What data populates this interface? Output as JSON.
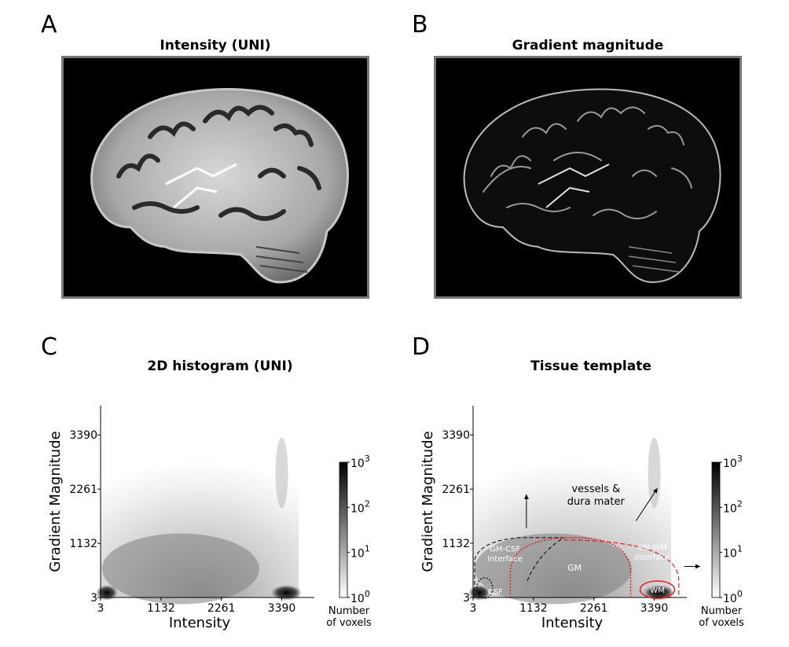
{
  "panels": {
    "A": {
      "letter": "A",
      "title": "Intensity (UNI)"
    },
    "B": {
      "letter": "B",
      "title": "Gradient magnitude"
    },
    "C": {
      "letter": "C",
      "title": "2D histogram (UNI)"
    },
    "D": {
      "letter": "D",
      "title": "Tissue template"
    }
  },
  "chart_data": [
    {
      "type": "heatmap",
      "title": "2D histogram (UNI)",
      "xlabel": "Intensity",
      "ylabel": "Gradient Magnitude",
      "xticks": [
        "3",
        "1132",
        "2261",
        "3390"
      ],
      "yticks": [
        "3",
        "1132",
        "2261",
        "3390"
      ],
      "xlim": [
        3,
        4000
      ],
      "ylim": [
        3,
        4000
      ],
      "colorbar": {
        "scale": "log",
        "ticks": [
          "10^0",
          "10^1",
          "10^2",
          "10^3"
        ],
        "label": "Number of voxels",
        "label_lines": [
          "Number",
          "of voxels"
        ]
      },
      "hotspots": [
        {
          "intensity": 3,
          "gradient": 3,
          "level": "high"
        },
        {
          "intensity": 3390,
          "gradient": 3,
          "level": "high"
        },
        {
          "intensity": 1500,
          "gradient": 600,
          "level": "medium"
        }
      ]
    },
    {
      "type": "heatmap",
      "title": "Tissue template",
      "xlabel": "Intensity",
      "ylabel": "Gradient Magnitude",
      "xticks": [
        "3",
        "1132",
        "2261",
        "3390"
      ],
      "yticks": [
        "3",
        "1132",
        "2261",
        "3390"
      ],
      "xlim": [
        3,
        4000
      ],
      "ylim": [
        3,
        4000
      ],
      "colorbar": {
        "scale": "log",
        "ticks": [
          "10^0",
          "10^1",
          "10^2",
          "10^3"
        ],
        "label": "Number of voxels",
        "label_lines": [
          "Number",
          "of voxels"
        ]
      },
      "annotations": [
        {
          "text": "CSF",
          "color": "#ffffff"
        },
        {
          "text": "GM",
          "color": "#ffffff"
        },
        {
          "text": "WM",
          "color": "#ffffff"
        },
        {
          "text": "GM-CSF interface",
          "lines": [
            "GM-CSF",
            "interface"
          ],
          "color": "#ffffff"
        },
        {
          "text": "GM-WM interface",
          "lines": [
            "GM-WM",
            "interface"
          ],
          "color": "#ffffff"
        },
        {
          "text": "vessels & dura mater",
          "lines": [
            "vessels &",
            "dura mater"
          ],
          "color": "#000000"
        }
      ],
      "region_colors": {
        "GM-CSF": "#000000",
        "CSF": "#000000",
        "GM": "#e02020",
        "GM-WM": "#e02020",
        "WM": "#e02020"
      }
    }
  ]
}
